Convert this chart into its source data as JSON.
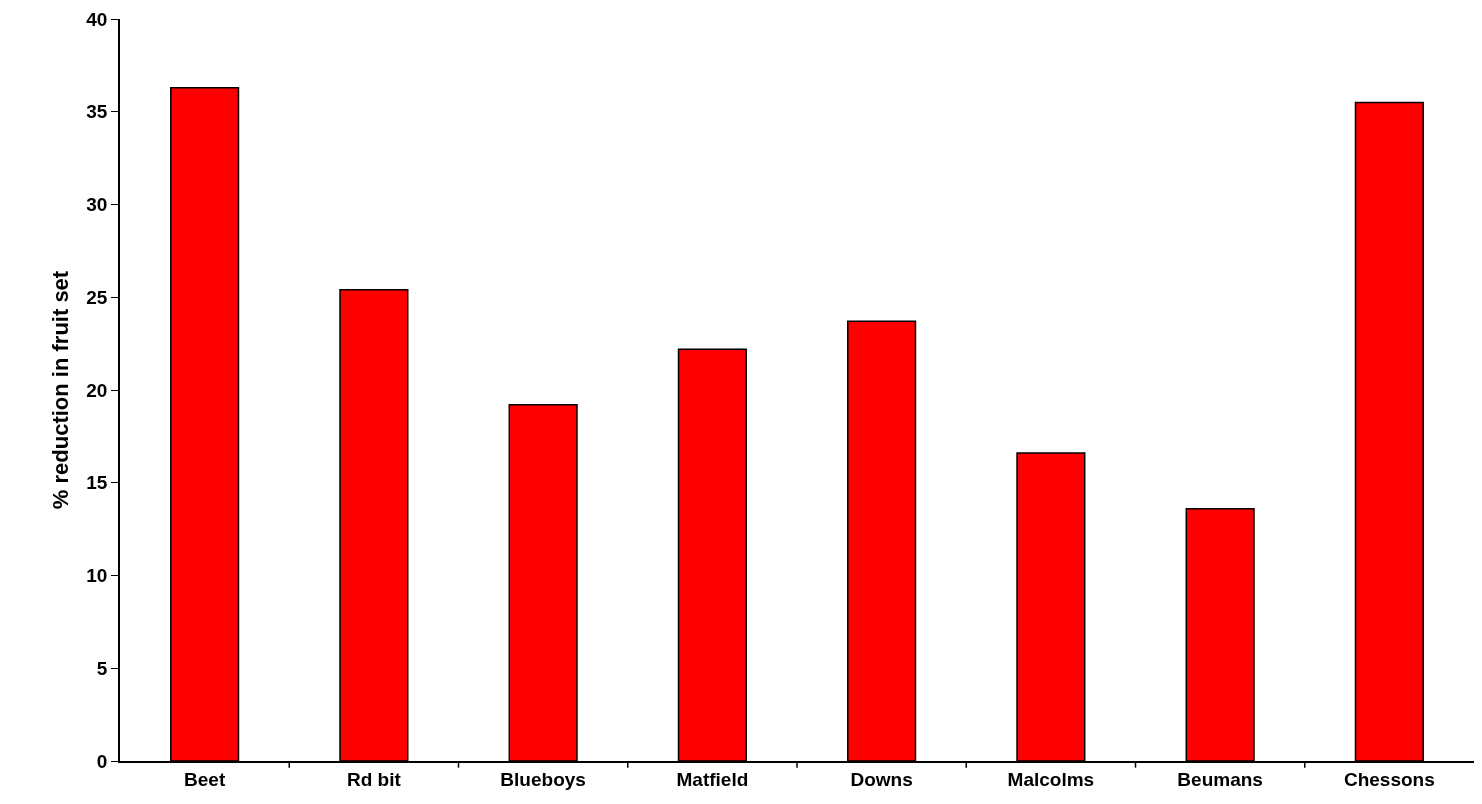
{
  "chart_data": {
    "type": "bar",
    "ylabel": "% reduction in fruit set",
    "categories": [
      "Beet",
      "Rd bit",
      "Blueboys",
      "Matfield",
      "Downs",
      "Malcolms",
      "Beumans",
      "Chessons"
    ],
    "values": [
      36.3,
      25.4,
      19.2,
      22.2,
      23.7,
      16.6,
      13.6,
      35.5
    ],
    "color": "#ff0000",
    "ylim": [
      0,
      40
    ],
    "yticks": [
      0,
      5,
      10,
      15,
      20,
      25,
      30,
      35,
      40
    ],
    "grid": false
  }
}
